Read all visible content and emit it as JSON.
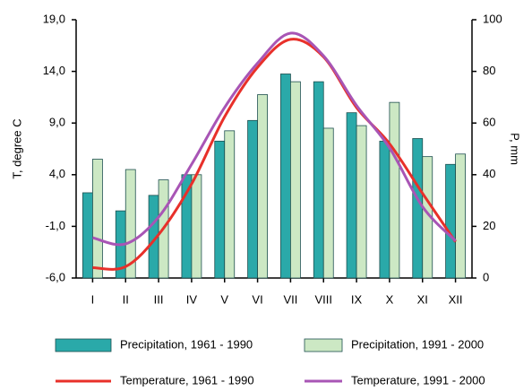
{
  "chart_data": {
    "type": "bar",
    "ylabel": "T, degree C",
    "y2label": "P, mm",
    "categories": [
      "I",
      "II",
      "III",
      "IV",
      "V",
      "VI",
      "VII",
      "VIII",
      "IX",
      "X",
      "XI",
      "XII"
    ],
    "ylim": [
      -6,
      19
    ],
    "yticks": [
      {
        "value": -6,
        "label": "-6,0"
      },
      {
        "value": -1,
        "label": "-1,0"
      },
      {
        "value": 4,
        "label": "4,0"
      },
      {
        "value": 9,
        "label": "9,0"
      },
      {
        "value": 14,
        "label": "14,0"
      },
      {
        "value": 19,
        "label": "19,0"
      }
    ],
    "y2lim": [
      0,
      100
    ],
    "y2ticks": [
      0,
      20,
      40,
      60,
      80,
      100
    ],
    "series": [
      {
        "name": "Precipitation, 1961 - 1990",
        "type": "bar",
        "axis": "y2",
        "color": "#2aa9a9",
        "values": [
          33,
          26,
          32,
          40,
          53,
          61,
          79,
          76,
          64,
          53,
          54,
          44
        ]
      },
      {
        "name": "Precipitation, 1991 - 2000",
        "type": "bar",
        "axis": "y2",
        "color": "#cce8c4",
        "values": [
          46,
          42,
          38,
          40,
          57,
          71,
          76,
          58,
          59,
          68,
          47,
          48
        ]
      },
      {
        "name": "Temperature, 1961 - 1990",
        "type": "line",
        "color": "#e8302a",
        "values": [
          -5.0,
          -4.9,
          -1.8,
          3.1,
          9.6,
          14.4,
          17.1,
          15.4,
          10.5,
          7.0,
          2.2,
          -2.5
        ]
      },
      {
        "name": "Temperature, 1991 - 2000",
        "type": "line",
        "color": "#a855b5",
        "values": [
          -2.1,
          -2.7,
          -0.1,
          5.0,
          10.5,
          14.8,
          17.7,
          15.5,
          10.7,
          6.6,
          0.9,
          -2.4
        ]
      }
    ]
  }
}
